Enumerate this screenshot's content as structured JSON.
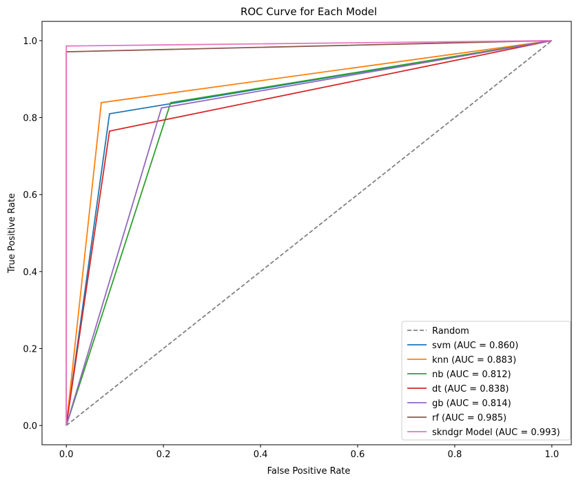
{
  "chart_data": {
    "type": "line",
    "title": "ROC Curve for Each Model",
    "xlabel": "False Positive Rate",
    "ylabel": "True Positive Rate",
    "xlim": [
      -0.05,
      1.04
    ],
    "ylim": [
      -0.05,
      1.05
    ],
    "xticks": [
      "0.0",
      "0.2",
      "0.4",
      "0.6",
      "0.8",
      "1.0"
    ],
    "yticks": [
      "0.0",
      "0.2",
      "0.4",
      "0.6",
      "0.8",
      "1.0"
    ],
    "grid": false,
    "legend_position": "lower-right",
    "series": [
      {
        "name": "Random",
        "color": "#808080",
        "dashed": true,
        "x": [
          0,
          1
        ],
        "y": [
          0,
          1
        ]
      },
      {
        "name": "svm (AUC = 0.860)",
        "color": "#1f77b4",
        "dashed": false,
        "x": [
          0,
          0.089,
          1
        ],
        "y": [
          0,
          0.81,
          1
        ]
      },
      {
        "name": "knn (AUC = 0.883)",
        "color": "#ff7f0e",
        "dashed": false,
        "x": [
          0,
          0.072,
          1
        ],
        "y": [
          0,
          0.839,
          1
        ]
      },
      {
        "name": "nb (AUC = 0.812)",
        "color": "#2ca02c",
        "dashed": false,
        "x": [
          0,
          0.215,
          1
        ],
        "y": [
          0,
          0.839,
          1
        ]
      },
      {
        "name": "dt (AUC = 0.838)",
        "color": "#d62728",
        "dashed": false,
        "x": [
          0,
          0.089,
          1
        ],
        "y": [
          0,
          0.765,
          1
        ]
      },
      {
        "name": "gb (AUC = 0.814)",
        "color": "#9467bd",
        "dashed": false,
        "x": [
          0,
          0.196,
          1
        ],
        "y": [
          0,
          0.825,
          1
        ]
      },
      {
        "name": "rf (AUC = 0.985)",
        "color": "#8c564b",
        "dashed": false,
        "x": [
          0,
          0,
          1
        ],
        "y": [
          0,
          0.971,
          1
        ]
      },
      {
        "name": "skndgr Model (AUC = 0.993)",
        "color": "#e377c2",
        "dashed": false,
        "x": [
          0,
          0,
          1
        ],
        "y": [
          0,
          0.986,
          1
        ]
      }
    ]
  }
}
